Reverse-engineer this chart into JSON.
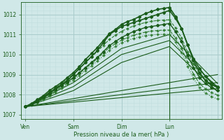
{
  "bg_color": "#d0e8e8",
  "grid_color_major": "#aacccc",
  "grid_color_minor": "#c0dede",
  "line_color_dark": "#1a5c1a",
  "line_color_med": "#2d7a2d",
  "xlabel": "Pression niveau de la mer( hPa )",
  "xtick_labels": [
    "Ven",
    "Sam",
    "Dim",
    "Lun"
  ],
  "xtick_positions": [
    0,
    48,
    96,
    144
  ],
  "ylim": [
    1006.8,
    1012.6
  ],
  "yticks": [
    1007,
    1008,
    1009,
    1010,
    1011,
    1012
  ],
  "xlim": [
    -4,
    196
  ],
  "vline_x": 144,
  "series": [
    {
      "x": [
        0,
        6,
        12,
        18,
        24,
        30,
        36,
        42,
        48,
        54,
        60,
        66,
        72,
        78,
        84,
        90,
        96,
        102,
        108,
        114,
        120,
        126,
        132,
        138,
        144,
        150,
        156,
        162,
        168,
        174,
        180,
        186,
        192
      ],
      "y": [
        1007.4,
        1007.5,
        1007.7,
        1007.9,
        1008.1,
        1008.3,
        1008.5,
        1008.7,
        1009.0,
        1009.3,
        1009.6,
        1009.9,
        1010.2,
        1010.6,
        1011.0,
        1011.2,
        1011.4,
        1011.5,
        1011.6,
        1011.7,
        1011.8,
        1011.9,
        1012.0,
        1012.1,
        1012.2,
        1011.8,
        1011.3,
        1010.5,
        1009.8,
        1009.3,
        1008.9,
        1008.6,
        1008.4
      ],
      "style": "-",
      "marker": "D",
      "ms": 2.0,
      "lw": 1.2,
      "color": "#1a5c1a",
      "zorder": 6
    },
    {
      "x": [
        0,
        6,
        12,
        18,
        24,
        30,
        36,
        42,
        48,
        54,
        60,
        66,
        72,
        78,
        84,
        90,
        96,
        102,
        108,
        114,
        120,
        126,
        132,
        138,
        144,
        150,
        156,
        162,
        168,
        174,
        180,
        186,
        192
      ],
      "y": [
        1007.4,
        1007.55,
        1007.75,
        1007.95,
        1008.2,
        1008.4,
        1008.6,
        1008.85,
        1009.1,
        1009.4,
        1009.75,
        1010.05,
        1010.35,
        1010.7,
        1011.05,
        1011.25,
        1011.5,
        1011.65,
        1011.75,
        1011.9,
        1012.05,
        1012.15,
        1012.25,
        1012.3,
        1012.35,
        1011.9,
        1011.3,
        1010.5,
        1009.7,
        1009.1,
        1008.7,
        1008.5,
        1008.35
      ],
      "style": "-",
      "marker": "D",
      "ms": 2.0,
      "lw": 1.2,
      "color": "#1a5c1a",
      "zorder": 6
    },
    {
      "x": [
        0,
        6,
        12,
        18,
        24,
        30,
        36,
        42,
        48,
        54,
        60,
        66,
        72,
        78,
        84,
        90,
        96,
        102,
        108,
        114,
        120,
        126,
        132,
        138,
        144,
        150,
        156,
        162,
        168,
        174,
        180,
        186,
        192
      ],
      "y": [
        1007.4,
        1007.5,
        1007.65,
        1007.85,
        1008.05,
        1008.25,
        1008.45,
        1008.65,
        1008.85,
        1009.1,
        1009.35,
        1009.6,
        1009.85,
        1010.15,
        1010.45,
        1010.65,
        1010.85,
        1011.0,
        1011.15,
        1011.25,
        1011.35,
        1011.4,
        1011.45,
        1011.5,
        1011.55,
        1011.15,
        1010.65,
        1009.95,
        1009.35,
        1008.85,
        1008.55,
        1008.35,
        1008.2
      ],
      "style": "-",
      "marker": "D",
      "ms": 2.0,
      "lw": 1.0,
      "color": "#1a5c1a",
      "zorder": 5
    },
    {
      "x": [
        0,
        6,
        12,
        18,
        24,
        30,
        36,
        42,
        48,
        54,
        60,
        66,
        72,
        78,
        84,
        90,
        96,
        102,
        108,
        114,
        120,
        126,
        132,
        138,
        144,
        150,
        156,
        162,
        168,
        174,
        180,
        186,
        192
      ],
      "y": [
        1007.4,
        1007.52,
        1007.68,
        1007.88,
        1008.1,
        1008.32,
        1008.55,
        1008.78,
        1009.02,
        1009.3,
        1009.6,
        1009.88,
        1010.16,
        1010.46,
        1010.76,
        1010.96,
        1011.16,
        1011.3,
        1011.42,
        1011.52,
        1011.6,
        1011.66,
        1011.7,
        1011.72,
        1011.73,
        1011.33,
        1010.83,
        1010.13,
        1009.53,
        1009.03,
        1008.73,
        1008.53,
        1008.38
      ],
      "style": "--",
      "marker": "+",
      "ms": 3.0,
      "lw": 0.8,
      "color": "#2d7a2d",
      "zorder": 4
    },
    {
      "x": [
        0,
        6,
        12,
        18,
        24,
        30,
        36,
        42,
        48,
        54,
        60,
        66,
        72,
        78,
        84,
        90,
        96,
        102,
        108,
        114,
        120,
        126,
        132,
        138,
        144,
        150,
        156,
        162,
        168,
        174,
        180,
        186,
        192
      ],
      "y": [
        1007.4,
        1007.5,
        1007.63,
        1007.8,
        1007.98,
        1008.18,
        1008.38,
        1008.58,
        1008.8,
        1009.05,
        1009.3,
        1009.55,
        1009.8,
        1010.08,
        1010.36,
        1010.54,
        1010.72,
        1010.85,
        1010.96,
        1011.05,
        1011.12,
        1011.17,
        1011.2,
        1011.22,
        1011.22,
        1010.82,
        1010.32,
        1009.62,
        1009.02,
        1008.55,
        1008.28,
        1008.1,
        1007.98
      ],
      "style": "--",
      "marker": "+",
      "ms": 3.0,
      "lw": 0.8,
      "color": "#2d7a2d",
      "zorder": 4
    },
    {
      "x": [
        0,
        6,
        12,
        18,
        24,
        30,
        36,
        42,
        48,
        54,
        60,
        66,
        72,
        78,
        84,
        90,
        96,
        102,
        108,
        114,
        120,
        126,
        132,
        138,
        144,
        150,
        156,
        162,
        168,
        174,
        180,
        186,
        192
      ],
      "y": [
        1007.4,
        1007.48,
        1007.6,
        1007.76,
        1007.94,
        1008.12,
        1008.32,
        1008.52,
        1008.72,
        1008.96,
        1009.2,
        1009.44,
        1009.68,
        1009.95,
        1010.22,
        1010.4,
        1010.58,
        1010.7,
        1010.8,
        1010.88,
        1010.94,
        1010.98,
        1011.0,
        1011.01,
        1011.01,
        1010.61,
        1010.11,
        1009.41,
        1008.81,
        1008.34,
        1008.08,
        1007.9,
        1007.78
      ],
      "style": ":",
      "marker": "+",
      "ms": 3.0,
      "lw": 0.8,
      "color": "#2d7a2d",
      "zorder": 4
    },
    {
      "x": [
        0,
        192
      ],
      "y": [
        1007.4,
        1009.0
      ],
      "style": "-",
      "marker": null,
      "ms": 0,
      "lw": 0.8,
      "color": "#1a5c1a",
      "zorder": 2
    },
    {
      "x": [
        0,
        192
      ],
      "y": [
        1007.4,
        1008.6
      ],
      "style": "-",
      "marker": null,
      "ms": 0,
      "lw": 0.8,
      "color": "#1a5c1a",
      "zorder": 2
    },
    {
      "x": [
        0,
        192
      ],
      "y": [
        1007.4,
        1008.3
      ],
      "style": "-",
      "marker": null,
      "ms": 0,
      "lw": 0.8,
      "color": "#1a5c1a",
      "zorder": 2
    },
    {
      "x": [
        0,
        48,
        96,
        144,
        192
      ],
      "y": [
        1007.4,
        1008.6,
        1010.3,
        1011.0,
        1008.55
      ],
      "style": "-",
      "marker": null,
      "ms": 0,
      "lw": 0.8,
      "color": "#1a5c1a",
      "zorder": 2
    },
    {
      "x": [
        0,
        48,
        96,
        144,
        192
      ],
      "y": [
        1007.4,
        1008.4,
        1010.0,
        1010.7,
        1008.35
      ],
      "style": "-",
      "marker": null,
      "ms": 0,
      "lw": 0.8,
      "color": "#1a5c1a",
      "zorder": 2
    },
    {
      "x": [
        0,
        48,
        96,
        144,
        192
      ],
      "y": [
        1007.4,
        1008.2,
        1009.6,
        1010.4,
        1008.15
      ],
      "style": "-",
      "marker": null,
      "ms": 0,
      "lw": 0.8,
      "color": "#1a5c1a",
      "zorder": 2
    }
  ]
}
